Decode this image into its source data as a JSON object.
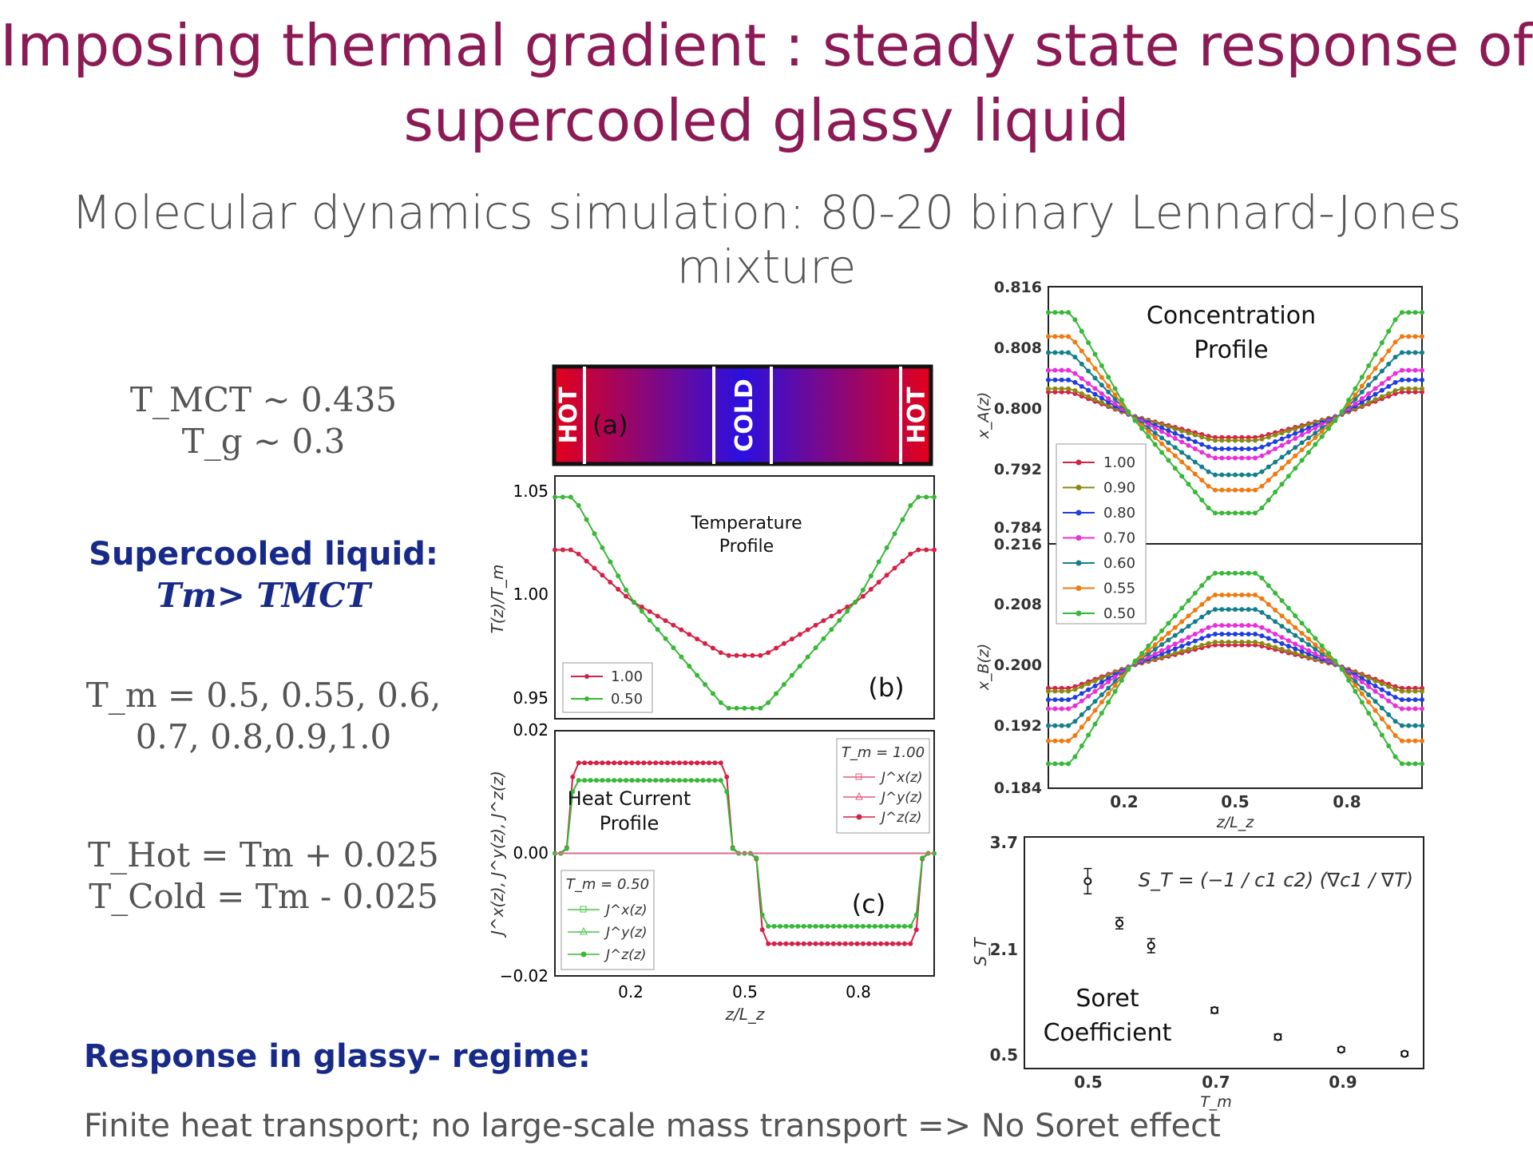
{
  "slide": {
    "title_line1": "Imposing thermal gradient : steady state response of",
    "title_line2": "supercooled glassy liquid",
    "subtitle": "Molecular dynamics simulation: 80-20 binary Lennard-Jones mixture",
    "tmct": "T_MCT ~ 0.435",
    "tg": "T_g ~ 0.3",
    "supercooled_heading": "Supercooled liquid:",
    "supercooled_cond": "Tm> TMCT",
    "tm_values_line1": "T_m = 0.5, 0.55, 0.6,",
    "tm_values_line2": "0.7, 0.8,0.9,1.0",
    "thot": "T_Hot = Tm + 0.025",
    "tcold": "T_Cold = Tm - 0.025",
    "response_heading": "Response in glassy- regime:",
    "conclusion": "Finite heat transport; no large-scale mass transport => No Soret effect"
  },
  "colors": {
    "title": "#8c1a55",
    "heading_blue": "#172a8a",
    "hot": "#e3001a",
    "cold": "#2a10e0",
    "s1.00": "#d62045",
    "s0.90": "#8a8a12",
    "s0.80": "#1f3ee0",
    "s0.70": "#e830d8",
    "s0.60": "#147f8c",
    "s0.55": "#f07a10",
    "s0.50": "#38b838"
  },
  "panel_a": {
    "hot_left": "HOT",
    "cold": "COLD",
    "hot_right": "HOT",
    "label": "(a)"
  },
  "panel_b": {
    "annotation_line1": "Temperature",
    "annotation_line2": "Profile",
    "label": "(b)",
    "ylabel": "T(z)/T_m",
    "yticks": [
      "1.05",
      "1.00",
      "0.95"
    ],
    "legend": [
      "1.00",
      "0.50"
    ]
  },
  "panel_c": {
    "annotation_line1": "Heat Current",
    "annotation_line2": "Profile",
    "label": "(c)",
    "ylabel": "J^x(z), J^y(z), J^z(z)",
    "yticks": [
      "0.02",
      "0.00",
      "−0.02"
    ],
    "xticks": [
      "0.2",
      "0.5",
      "0.8"
    ],
    "xlabel": "z/L_z",
    "legend_top_title": "T_m = 1.00",
    "legend_bottom_title": "T_m = 0.50",
    "legend_items": [
      "J^x(z)",
      "J^y(z)",
      "J^z(z)"
    ]
  },
  "panel_conc": {
    "annotation_line1": "Concentration",
    "annotation_line2": "Profile",
    "ylabel_top": "x_A(z)",
    "ylabel_bottom": "x_B(z)",
    "yticks_top": [
      "0.816",
      "0.808",
      "0.800",
      "0.792",
      "0.784"
    ],
    "yticks_bottom": [
      "0.216",
      "0.208",
      "0.200",
      "0.192",
      "0.184"
    ],
    "xticks": [
      "0.2",
      "0.5",
      "0.8"
    ],
    "xlabel": "z/L_z",
    "legend": [
      "1.00",
      "0.90",
      "0.80",
      "0.70",
      "0.60",
      "0.55",
      "0.50"
    ]
  },
  "panel_soret": {
    "annotation_line1": "Soret",
    "annotation_line2": "Coefficient",
    "ylabel": "S_T",
    "xlabel": "T_m",
    "yticks": [
      "3.7",
      "2.1",
      "0.5"
    ],
    "xticks": [
      "0.5",
      "0.7",
      "0.9"
    ],
    "formula": "S_T = (−1 / c1 c2) (∇c1 / ∇T)"
  },
  "chart_data": [
    {
      "type": "line",
      "id": "temperature_profile",
      "xlabel": "z/L_z",
      "ylabel": "T(z)/T_m",
      "xlim": [
        0,
        1
      ],
      "ylim": [
        0.945,
        1.06
      ],
      "series": [
        {
          "name": "1.00",
          "x": [
            0,
            0.05,
            0.2,
            0.45,
            0.55,
            0.8,
            0.95,
            1.0
          ],
          "y": [
            1.025,
            1.025,
            1.001,
            0.975,
            0.975,
            1.001,
            1.025,
            1.025
          ]
        },
        {
          "name": "0.50",
          "x": [
            0,
            0.05,
            0.2,
            0.45,
            0.55,
            0.8,
            0.95,
            1.0
          ],
          "y": [
            1.05,
            1.05,
            1.002,
            0.95,
            0.95,
            1.002,
            1.05,
            1.05
          ]
        }
      ]
    },
    {
      "type": "line",
      "id": "heat_current_profile",
      "xlabel": "z/L_z",
      "ylabel": "J(z)",
      "xlim": [
        0,
        1
      ],
      "ylim": [
        -0.02,
        0.02
      ],
      "series": [
        {
          "name": "T_m = 1.00 J^z",
          "x": [
            0,
            0.03,
            0.05,
            0.45,
            0.47,
            0.53,
            0.55,
            0.95,
            0.97,
            1.0
          ],
          "y": [
            0,
            0,
            0.0155,
            0.0155,
            0,
            0,
            -0.0155,
            -0.0155,
            0,
            0
          ]
        },
        {
          "name": "T_m = 0.50 J^z",
          "x": [
            0,
            0.03,
            0.05,
            0.45,
            0.47,
            0.53,
            0.55,
            0.95,
            0.97,
            1.0
          ],
          "y": [
            0,
            0,
            0.0125,
            0.0125,
            0,
            0,
            -0.0125,
            -0.0125,
            0,
            0
          ]
        }
      ]
    },
    {
      "type": "line",
      "id": "concentration_xA",
      "xlabel": "z/L_z",
      "ylabel": "x_A(z)",
      "ylim": [
        0.784,
        0.816
      ],
      "series": [
        {
          "name": "1.00",
          "amp": 0.0029
        },
        {
          "name": "0.90",
          "amp": 0.0033
        },
        {
          "name": "0.80",
          "amp": 0.0044
        },
        {
          "name": "0.70",
          "amp": 0.0056
        },
        {
          "name": "0.60",
          "amp": 0.0078
        },
        {
          "name": "0.55",
          "amp": 0.0098
        },
        {
          "name": "0.50",
          "amp": 0.0128
        }
      ]
    },
    {
      "type": "line",
      "id": "concentration_xB",
      "xlabel": "z/L_z",
      "ylabel": "x_B(z)",
      "ylim": [
        0.184,
        0.216
      ]
    },
    {
      "type": "scatter",
      "id": "soret_coefficient",
      "xlabel": "T_m",
      "ylabel": "S_T",
      "xlim": [
        0.4,
        1.03
      ],
      "ylim": [
        0.45,
        3.75
      ],
      "x": [
        0.5,
        0.55,
        0.6,
        0.7,
        0.8,
        0.9,
        1.0
      ],
      "y": [
        3.12,
        2.52,
        2.2,
        1.28,
        0.9,
        0.72,
        0.66
      ],
      "err": [
        0.18,
        0.08,
        0.1,
        0.04,
        0.04,
        0.03,
        0.03
      ]
    }
  ]
}
